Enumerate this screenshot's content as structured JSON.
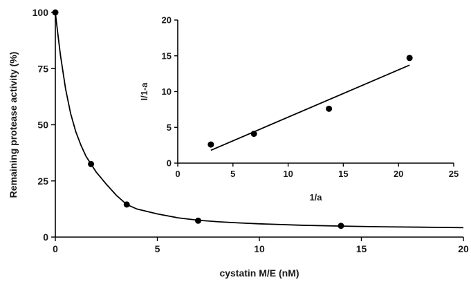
{
  "chart_data": [
    {
      "type": "line",
      "xlabel": "cystatin M/E (nM)",
      "ylabel": "Remaining protease activity (%)",
      "xlim": [
        0,
        20
      ],
      "ylim": [
        0,
        100
      ],
      "xticks": [
        0,
        5,
        10,
        15,
        20
      ],
      "yticks": [
        0,
        25,
        50,
        75,
        100
      ],
      "xtick_labels": [
        "0",
        "5",
        "10",
        "15",
        "20"
      ],
      "ytick_labels": [
        "0",
        "25",
        "50",
        "75",
        "100"
      ],
      "grid": false,
      "series": [
        {
          "kind": "scatter",
          "x": [
            0,
            1.75,
            3.5,
            7.0,
            14.0
          ],
          "y": [
            100,
            32.5,
            14.5,
            7.3,
            5.0
          ]
        },
        {
          "kind": "fit-curve",
          "x": [
            0,
            0.1,
            0.25,
            0.5,
            0.75,
            1.0,
            1.25,
            1.5,
            1.75,
            2.0,
            2.5,
            3.0,
            3.5,
            4.0,
            5.0,
            6.0,
            7.0,
            8.0,
            9.0,
            10.0,
            12.0,
            14.0,
            16.0,
            18.0,
            20.0
          ],
          "y": [
            100,
            92,
            81,
            66,
            55,
            47,
            41,
            36,
            32.5,
            29,
            23.5,
            18.5,
            14.5,
            12.5,
            10.3,
            8.6,
            7.5,
            6.8,
            6.3,
            5.9,
            5.3,
            4.9,
            4.6,
            4.4,
            4.2
          ]
        }
      ]
    },
    {
      "type": "scatter",
      "inset": true,
      "xlabel": "1/a",
      "ylabel": "I/1-a",
      "xlim": [
        0,
        25
      ],
      "ylim": [
        0,
        20
      ],
      "xticks": [
        0,
        5,
        10,
        15,
        20,
        25
      ],
      "yticks": [
        0,
        5,
        10,
        15,
        20
      ],
      "xtick_labels": [
        "0",
        "5",
        "10",
        "15",
        "20",
        "25"
      ],
      "ytick_labels": [
        "0",
        "5",
        "10",
        "15",
        "20"
      ],
      "grid": false,
      "series": [
        {
          "kind": "scatter",
          "x": [
            3.0,
            6.9,
            13.7,
            21.0
          ],
          "y": [
            2.6,
            4.1,
            7.6,
            14.7
          ]
        },
        {
          "kind": "fit-line",
          "x": [
            3.0,
            21.0
          ],
          "y": [
            1.8,
            13.7
          ]
        }
      ]
    }
  ]
}
